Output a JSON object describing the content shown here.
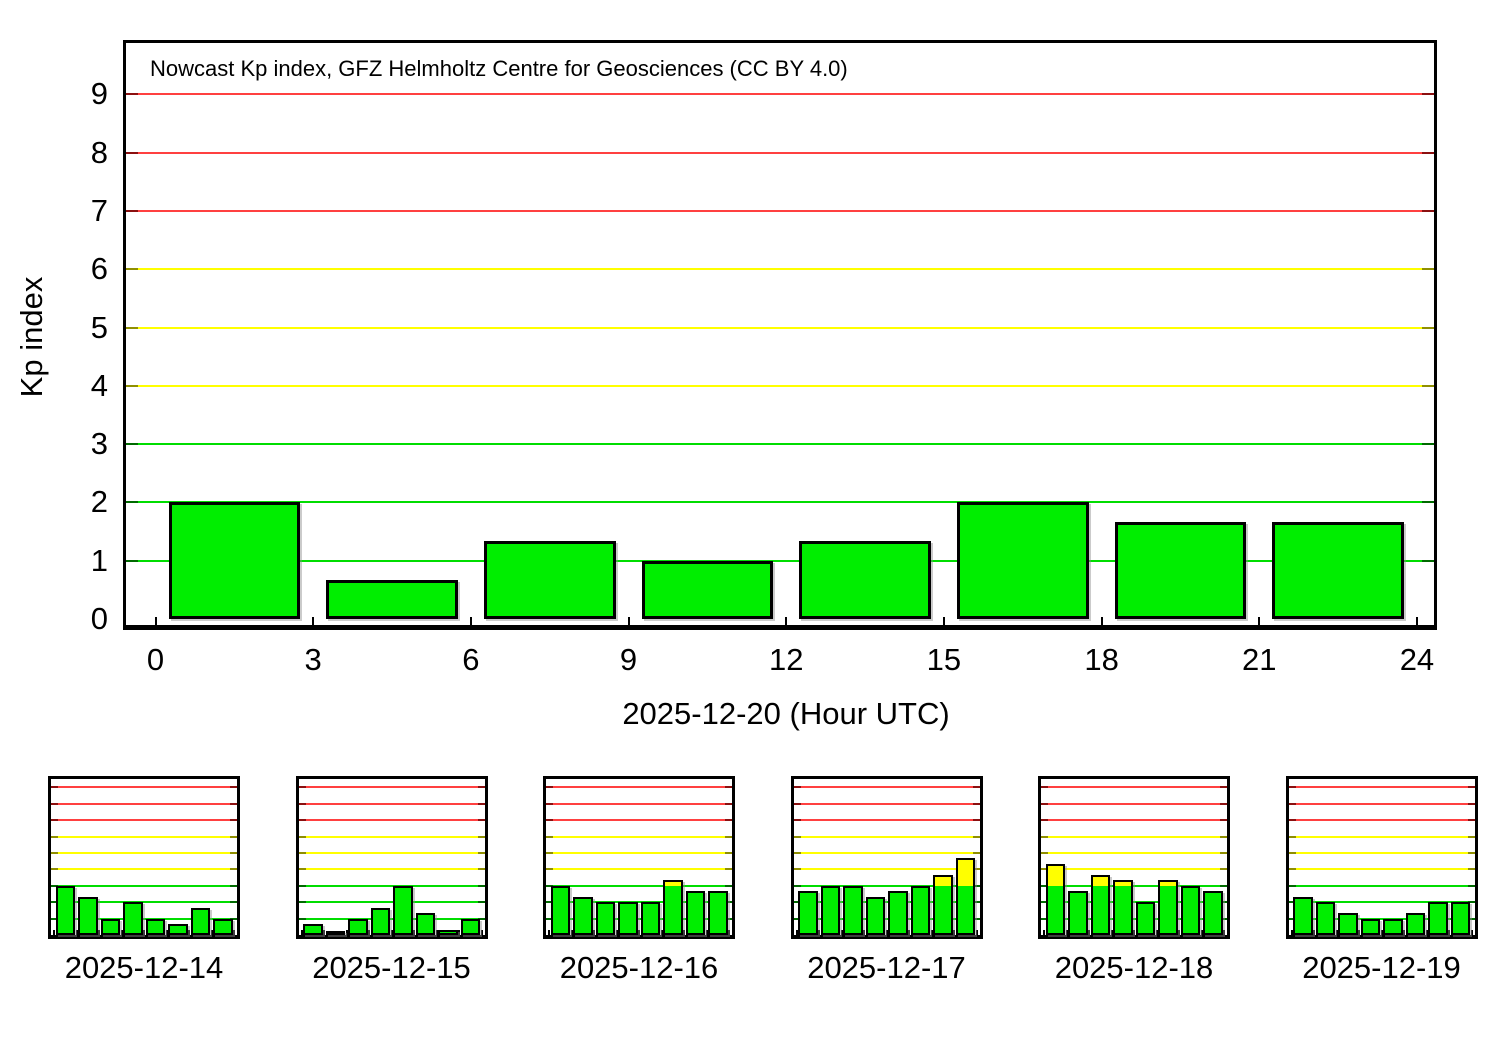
{
  "colors": {
    "background": "#ffffff",
    "frame": "#000000",
    "text": "#000000",
    "bar_quiet": "#00ee00",
    "bar_active": "#ffff00",
    "bar_border": "#000000",
    "grid_quiet": "#00dd00",
    "grid_active": "#ffff00",
    "grid_storm": "#ff4040",
    "grid_end_quiet": "#006a00",
    "grid_end_active": "#8f8f00",
    "grid_end_storm": "#8b1010"
  },
  "chart_data": [
    {
      "id": "main",
      "type": "bar",
      "title": "Nowcast Kp index, GFZ Helmholtz Centre for Geosciences (CC BY 4.0)",
      "xlabel": "2025-12-20 (Hour UTC)",
      "ylabel": "Kp index",
      "x": [
        0,
        3,
        6,
        9,
        12,
        15,
        18,
        21
      ],
      "values": [
        2.0,
        0.67,
        1.33,
        1.0,
        1.33,
        2.0,
        1.67,
        1.67
      ],
      "bin_hours": 3,
      "x_ticks": [
        0,
        3,
        6,
        9,
        12,
        15,
        18,
        21,
        24
      ],
      "y_ticks": [
        0,
        1,
        2,
        3,
        4,
        5,
        6,
        7,
        8,
        9
      ],
      "xlim": [
        0,
        24
      ],
      "ylim": [
        0,
        9.9
      ],
      "grid": "horizontal lines at Kp 1-9; 1-3 green, 4-6 yellow, 7-9 red",
      "legend": "none",
      "bar_color_rule": "green below Kp 3, yellow segment for portion above Kp 3"
    },
    {
      "id": "mini-1",
      "type": "bar",
      "title": "2025-12-14",
      "x": [
        0,
        3,
        6,
        9,
        12,
        15,
        18,
        21
      ],
      "values": [
        3.0,
        2.33,
        1.0,
        2.0,
        1.0,
        0.67,
        1.67,
        1.0
      ],
      "bin_hours": 3,
      "xlim": [
        0,
        24
      ],
      "ylim": [
        0,
        9.6
      ]
    },
    {
      "id": "mini-2",
      "type": "bar",
      "title": "2025-12-15",
      "x": [
        0,
        3,
        6,
        9,
        12,
        15,
        18,
        21
      ],
      "values": [
        0.67,
        0.0,
        1.0,
        1.67,
        3.0,
        1.33,
        0.33,
        1.0
      ],
      "bin_hours": 3,
      "xlim": [
        0,
        24
      ],
      "ylim": [
        0,
        9.6
      ]
    },
    {
      "id": "mini-3",
      "type": "bar",
      "title": "2025-12-16",
      "x": [
        0,
        3,
        6,
        9,
        12,
        15,
        18,
        21
      ],
      "values": [
        3.0,
        2.33,
        2.0,
        2.0,
        2.0,
        3.33,
        2.67,
        2.67
      ],
      "bin_hours": 3,
      "xlim": [
        0,
        24
      ],
      "ylim": [
        0,
        9.6
      ]
    },
    {
      "id": "mini-4",
      "type": "bar",
      "title": "2025-12-17",
      "x": [
        0,
        3,
        6,
        9,
        12,
        15,
        18,
        21
      ],
      "values": [
        2.67,
        3.0,
        3.0,
        2.33,
        2.67,
        3.0,
        3.67,
        4.67
      ],
      "bin_hours": 3,
      "xlim": [
        0,
        24
      ],
      "ylim": [
        0,
        9.6
      ]
    },
    {
      "id": "mini-5",
      "type": "bar",
      "title": "2025-12-18",
      "x": [
        0,
        3,
        6,
        9,
        12,
        15,
        18,
        21
      ],
      "values": [
        4.33,
        2.67,
        3.67,
        3.33,
        2.0,
        3.33,
        3.0,
        2.67
      ],
      "bin_hours": 3,
      "xlim": [
        0,
        24
      ],
      "ylim": [
        0,
        9.6
      ]
    },
    {
      "id": "mini-6",
      "type": "bar",
      "title": "2025-12-19",
      "x": [
        0,
        3,
        6,
        9,
        12,
        15,
        18,
        21
      ],
      "values": [
        2.33,
        2.0,
        1.33,
        1.0,
        1.0,
        1.33,
        2.0,
        2.0
      ],
      "bin_hours": 3,
      "xlim": [
        0,
        24
      ],
      "ylim": [
        0,
        9.6
      ]
    }
  ]
}
